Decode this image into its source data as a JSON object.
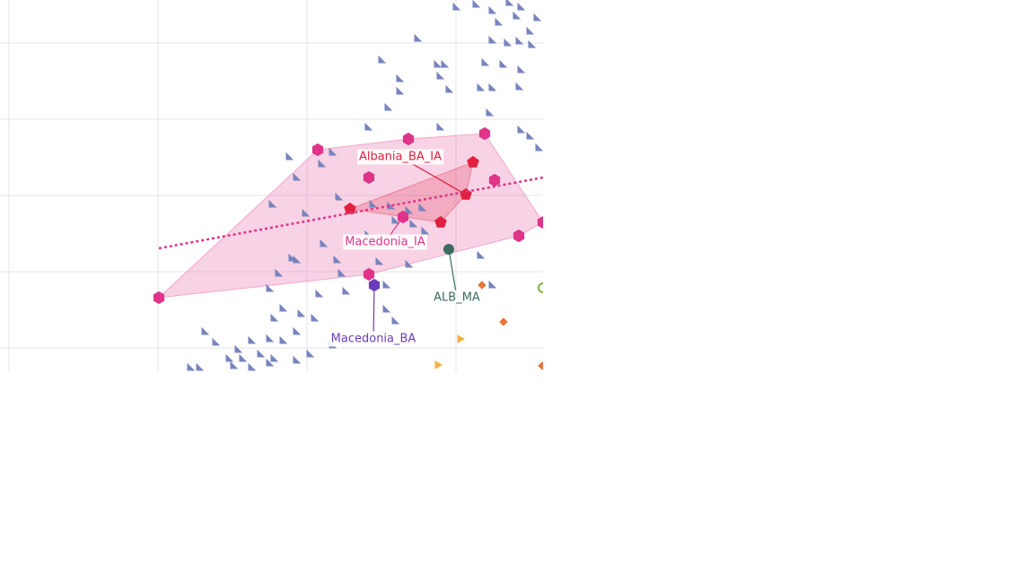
{
  "chart_data": {
    "type": "scatter",
    "xlim": [
      0,
      605
    ],
    "ylim": [
      0,
      415
    ],
    "xticks": [
      10,
      176,
      342,
      508
    ],
    "yticks": [
      27,
      112,
      197,
      282,
      367
    ],
    "grid": true,
    "series": [
      {
        "marker": "triangle",
        "color": "#7884bd",
        "x": [
          508,
          530,
          548,
          567,
          580,
          598,
          555,
          575,
          590,
          465,
          548,
          565,
          578,
          592,
          425,
          487,
          495,
          490,
          540,
          560,
          580,
          445,
          445,
          500,
          535,
          548,
          578,
          432,
          545,
          410,
          490,
          580,
          590,
          322,
          358,
          370,
          600,
          330,
          303,
          340,
          377,
          415,
          435,
          455,
          470,
          440,
          460,
          473,
          410,
          360,
          325,
          330,
          375,
          455,
          310,
          380,
          422,
          300,
          355,
          385,
          430,
          535,
          548,
          315,
          335,
          350,
          305,
          430,
          440,
          330,
          228,
          240,
          265,
          280,
          300,
          315,
          255,
          270,
          290,
          305,
          330,
          212,
          222,
          260,
          280,
          345,
          370,
          300
        ],
        "values": [
          407,
          410,
          403,
          412,
          407,
          395,
          390,
          397,
          380,
          372,
          370,
          367,
          369,
          365,
          348,
          343,
          343,
          330,
          345,
          343,
          337,
          327,
          313,
          315,
          317,
          317,
          318,
          295,
          289,
          273,
          273,
          270,
          263,
          240,
          232,
          245,
          250,
          217,
          187,
          177,
          195,
          187,
          185,
          180,
          183,
          169,
          165,
          157,
          153,
          143,
          127,
          125,
          125,
          120,
          110,
          110,
          123,
          93,
          87,
          90,
          97,
          130,
          97,
          71,
          65,
          60,
          60,
          70,
          57,
          45,
          45,
          33,
          25,
          35,
          37,
          35,
          15,
          15,
          20,
          15,
          13,
          5,
          5,
          7,
          5,
          20,
          30,
          10
        ]
      },
      {
        "marker": "diamond",
        "color": "#e8753a",
        "x": [
          537,
          561,
          604
        ],
        "values": [
          97,
          56,
          7
        ]
      },
      {
        "marker": "triangle-right",
        "color": "#f5b041",
        "x": [
          513,
          488
        ],
        "values": [
          37,
          8
        ]
      },
      {
        "marker": "ring",
        "color": "#7cb342",
        "x": [
          605
        ],
        "values": [
          94
        ]
      },
      {
        "name": "Macedonia_IA",
        "marker": "hexagon",
        "color": "#e0338a",
        "hull": true,
        "x": [
          449,
          177,
          354,
          455,
          540,
          411,
          551,
          578,
          411,
          605
        ],
        "values": [
          173,
          83,
          248,
          260,
          266,
          217,
          214,
          152,
          109,
          167
        ]
      },
      {
        "name": "Albania_BA_IA",
        "marker": "pentagon",
        "color": "#e0203f",
        "hull": true,
        "x": [
          519,
          390,
          527,
          491
        ],
        "values": [
          198,
          182,
          234,
          167
        ]
      },
      {
        "name": "ALB_MA",
        "marker": "circle",
        "color": "#3d6b63",
        "x": [
          500
        ],
        "values": [
          137
        ]
      },
      {
        "name": "Macedonia_BA",
        "marker": "hexagon",
        "color": "#6a3db8",
        "x": [
          417
        ],
        "values": [
          97
        ]
      },
      {
        "mode": "line",
        "dash": "dot",
        "color": "#e0338a",
        "x": [
          177,
          605
        ],
        "values": [
          138,
          217
        ]
      }
    ]
  }
}
